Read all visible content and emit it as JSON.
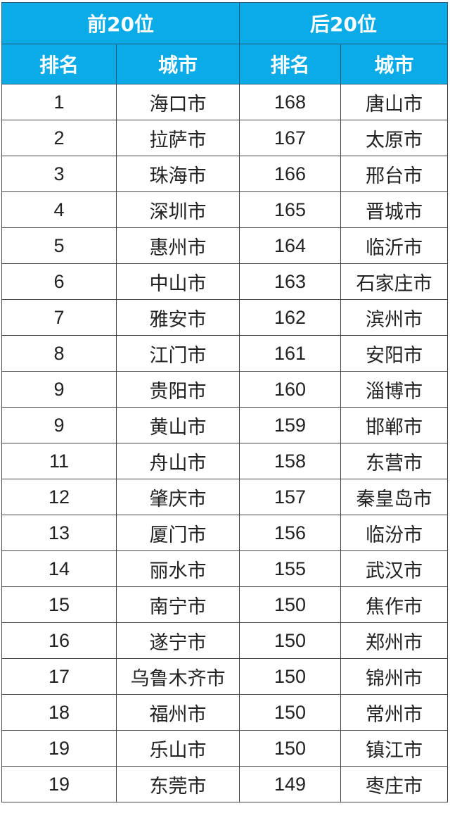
{
  "header": {
    "top_group": "前20位",
    "bottom_group": "后20位",
    "rank_label": "排名",
    "city_label": "城市"
  },
  "colors": {
    "header_bg": "#0aabe6",
    "header_text": "#ffffff"
  },
  "rows": [
    {
      "top_rank": "1",
      "top_city": "海口市",
      "bottom_rank": "168",
      "bottom_city": "唐山市"
    },
    {
      "top_rank": "2",
      "top_city": "拉萨市",
      "bottom_rank": "167",
      "bottom_city": "太原市"
    },
    {
      "top_rank": "3",
      "top_city": "珠海市",
      "bottom_rank": "166",
      "bottom_city": "邢台市"
    },
    {
      "top_rank": "4",
      "top_city": "深圳市",
      "bottom_rank": "165",
      "bottom_city": "晋城市"
    },
    {
      "top_rank": "5",
      "top_city": "惠州市",
      "bottom_rank": "164",
      "bottom_city": "临沂市"
    },
    {
      "top_rank": "6",
      "top_city": "中山市",
      "bottom_rank": "163",
      "bottom_city": "石家庄市"
    },
    {
      "top_rank": "7",
      "top_city": "雅安市",
      "bottom_rank": "162",
      "bottom_city": "滨州市"
    },
    {
      "top_rank": "8",
      "top_city": "江门市",
      "bottom_rank": "161",
      "bottom_city": "安阳市"
    },
    {
      "top_rank": "9",
      "top_city": "贵阳市",
      "bottom_rank": "160",
      "bottom_city": "淄博市"
    },
    {
      "top_rank": "9",
      "top_city": "黄山市",
      "bottom_rank": "159",
      "bottom_city": "邯郸市"
    },
    {
      "top_rank": "11",
      "top_city": "舟山市",
      "bottom_rank": "158",
      "bottom_city": "东营市"
    },
    {
      "top_rank": "12",
      "top_city": "肇庆市",
      "bottom_rank": "157",
      "bottom_city": "秦皇岛市"
    },
    {
      "top_rank": "13",
      "top_city": "厦门市",
      "bottom_rank": "156",
      "bottom_city": "临汾市"
    },
    {
      "top_rank": "14",
      "top_city": "丽水市",
      "bottom_rank": "155",
      "bottom_city": "武汉市"
    },
    {
      "top_rank": "15",
      "top_city": "南宁市",
      "bottom_rank": "150",
      "bottom_city": "焦作市"
    },
    {
      "top_rank": "16",
      "top_city": "遂宁市",
      "bottom_rank": "150",
      "bottom_city": "郑州市"
    },
    {
      "top_rank": "17",
      "top_city": "乌鲁木齐市",
      "bottom_rank": "150",
      "bottom_city": "锦州市"
    },
    {
      "top_rank": "18",
      "top_city": "福州市",
      "bottom_rank": "150",
      "bottom_city": "常州市"
    },
    {
      "top_rank": "19",
      "top_city": "乐山市",
      "bottom_rank": "150",
      "bottom_city": "镇江市"
    },
    {
      "top_rank": "19",
      "top_city": "东莞市",
      "bottom_rank": "149",
      "bottom_city": "枣庄市"
    }
  ]
}
